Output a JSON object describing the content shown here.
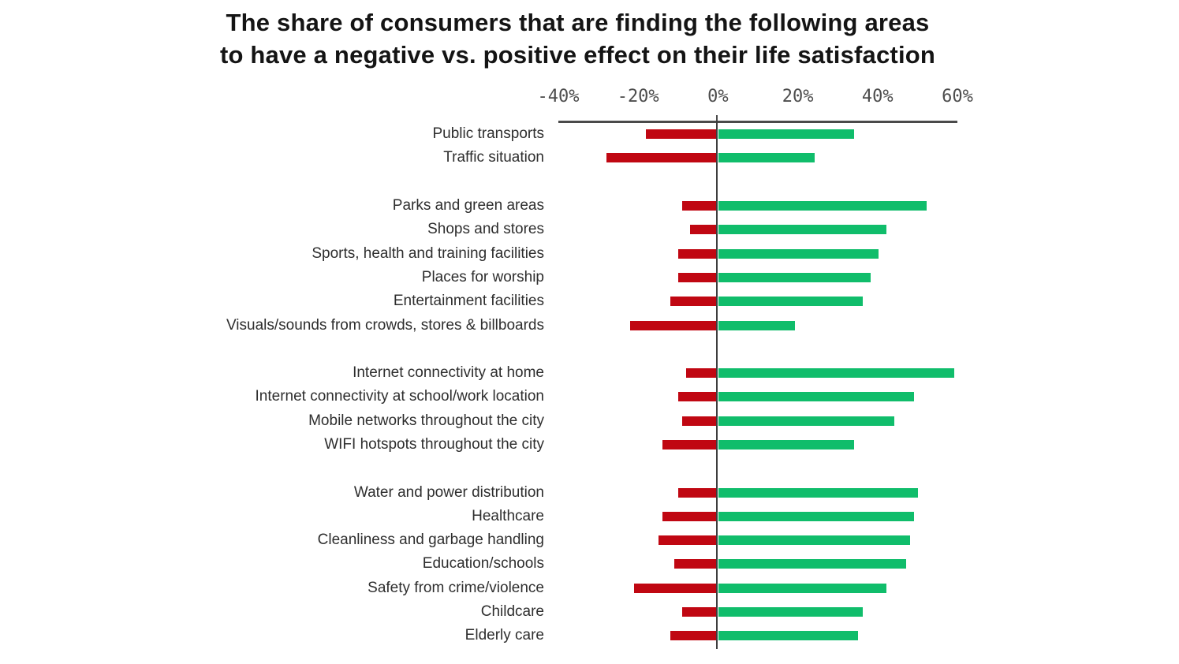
{
  "title": {
    "line1": "The share of consumers that are finding the following areas",
    "line2": "to have a negative vs. positive effect on their life satisfaction"
  },
  "chart_data": {
    "type": "bar",
    "orientation": "horizontal-diverging",
    "title": "The share of consumers that are finding the following areas to have a negative vs. positive effect on their life satisfaction",
    "axis": {
      "unit": "%",
      "min": -40,
      "max": 60,
      "tick_labels": [
        "-40%",
        "-20%",
        "0%",
        "20%",
        "40%",
        "60%"
      ],
      "tick_values": [
        -40,
        -20,
        0,
        20,
        40,
        60
      ],
      "grid": false,
      "position": "top"
    },
    "colors": {
      "negative": "#c00712",
      "positive": "#10bd6b",
      "axis": "#4a4a4a"
    },
    "series": [
      {
        "name": "negative",
        "color": "#c00712"
      },
      {
        "name": "positive",
        "color": "#10bd6b"
      }
    ],
    "groups": [
      {
        "items": [
          {
            "label": "Public transports",
            "negative": -18,
            "positive": 34
          },
          {
            "label": "Traffic situation",
            "negative": -28,
            "positive": 24
          }
        ]
      },
      {
        "items": [
          {
            "label": "Parks and green areas",
            "negative": -9,
            "positive": 52
          },
          {
            "label": "Shops and stores",
            "negative": -7,
            "positive": 42
          },
          {
            "label": "Sports, health and training facilities",
            "negative": -10,
            "positive": 40
          },
          {
            "label": "Places for worship",
            "negative": -10,
            "positive": 38
          },
          {
            "label": "Entertainment facilities",
            "negative": -12,
            "positive": 36
          },
          {
            "label": "Visuals/sounds from crowds, stores & billboards",
            "negative": -22,
            "positive": 19
          }
        ]
      },
      {
        "items": [
          {
            "label": "Internet connectivity at home",
            "negative": -8,
            "positive": 59
          },
          {
            "label": "Internet connectivity at school/work location",
            "negative": -10,
            "positive": 49
          },
          {
            "label": "Mobile networks throughout the city",
            "negative": -9,
            "positive": 44
          },
          {
            "label": "WIFI hotspots throughout the city",
            "negative": -14,
            "positive": 34
          }
        ]
      },
      {
        "items": [
          {
            "label": "Water and power distribution",
            "negative": -10,
            "positive": 50
          },
          {
            "label": "Healthcare",
            "negative": -14,
            "positive": 49
          },
          {
            "label": "Cleanliness and garbage handling",
            "negative": -15,
            "positive": 48
          },
          {
            "label": "Education/schools",
            "negative": -11,
            "positive": 47
          },
          {
            "label": "Safety from crime/violence",
            "negative": -21,
            "positive": 42
          },
          {
            "label": "Childcare",
            "negative": -9,
            "positive": 36
          },
          {
            "label": "Elderly care",
            "negative": -12,
            "positive": 35
          }
        ]
      }
    ]
  }
}
